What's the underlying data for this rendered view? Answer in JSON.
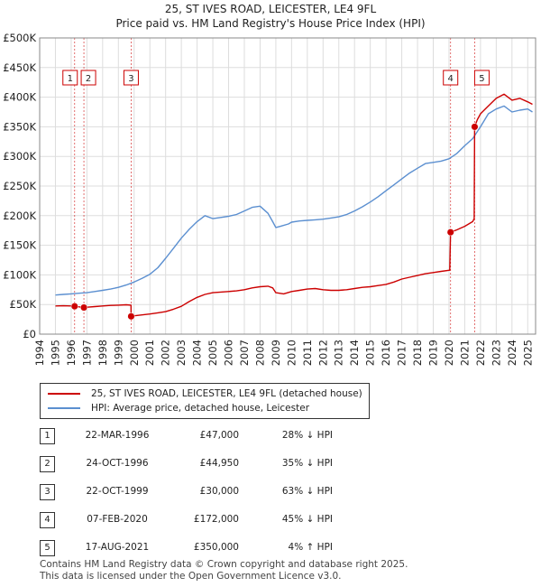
{
  "title_line1": "25, ST IVES ROAD, LEICESTER, LE4 9FL",
  "title_line2": "Price paid vs. HM Land Registry's House Price Index (HPI)",
  "legend": {
    "property": "25, ST IVES ROAD, LEICESTER, LE4 9FL (detached house)",
    "hpi": "HPI: Average price, detached house, Leicester"
  },
  "sales": [
    {
      "num": "1",
      "date": "22-MAR-1996",
      "price": "£47,000",
      "hpi": "28% ↓ HPI"
    },
    {
      "num": "2",
      "date": "24-OCT-1996",
      "price": "£44,950",
      "hpi": "35% ↓ HPI"
    },
    {
      "num": "3",
      "date": "22-OCT-1999",
      "price": "£30,000",
      "hpi": "63% ↓ HPI"
    },
    {
      "num": "4",
      "date": "07-FEB-2020",
      "price": "£172,000",
      "hpi": "45% ↓ HPI"
    },
    {
      "num": "5",
      "date": "17-AUG-2021",
      "price": "£350,000",
      "hpi": "4% ↑ HPI"
    }
  ],
  "footer": {
    "line1": "Contains HM Land Registry data © Crown copyright and database right 2025.",
    "line2": "This data is licensed under the Open Government Licence v3.0."
  },
  "colors": {
    "property": "#cc0000",
    "hpi": "#5b8fd0",
    "marker": "#cc0000",
    "vline": "#cc0000"
  },
  "chart_data": {
    "type": "line",
    "xlim": [
      1994,
      2025.5
    ],
    "ylim": [
      0,
      500000
    ],
    "x_ticks": [
      1994,
      1995,
      1996,
      1997,
      1998,
      1999,
      2000,
      2001,
      2002,
      2003,
      2004,
      2005,
      2006,
      2007,
      2008,
      2009,
      2010,
      2011,
      2012,
      2013,
      2014,
      2015,
      2016,
      2017,
      2018,
      2019,
      2020,
      2021,
      2022,
      2023,
      2024,
      2025
    ],
    "y_ticks": [
      0,
      50000,
      100000,
      150000,
      200000,
      250000,
      300000,
      350000,
      400000,
      450000,
      500000
    ],
    "y_tick_labels": [
      "£0",
      "£50K",
      "£100K",
      "£150K",
      "£200K",
      "£250K",
      "£300K",
      "£350K",
      "£400K",
      "£450K",
      "£500K"
    ],
    "grid": true,
    "sale_markers": [
      {
        "label": "1",
        "x": 1996.22,
        "y": 47000
      },
      {
        "label": "2",
        "x": 1996.81,
        "y": 44950
      },
      {
        "label": "3",
        "x": 1999.81,
        "y": 30000
      },
      {
        "label": "4",
        "x": 2020.1,
        "y": 172000
      },
      {
        "label": "5",
        "x": 2021.63,
        "y": 350000
      }
    ],
    "series": [
      {
        "name": "25, ST IVES ROAD, LEICESTER, LE4 9FL (detached house)",
        "x": [
          1995.0,
          1995.5,
          1996.0,
          1996.22,
          1996.5,
          1996.81,
          1997.0,
          1997.5,
          1998.0,
          1998.5,
          1999.0,
          1999.5,
          1999.8,
          1999.81,
          2000.0,
          2000.5,
          2001.0,
          2001.5,
          2002.0,
          2002.5,
          2003.0,
          2003.5,
          2004.0,
          2004.5,
          2005.0,
          2005.5,
          2006.0,
          2006.5,
          2007.0,
          2007.5,
          2008.0,
          2008.5,
          2008.8,
          2009.0,
          2009.5,
          2010.0,
          2010.5,
          2011.0,
          2011.5,
          2012.0,
          2012.5,
          2013.0,
          2013.5,
          2014.0,
          2014.5,
          2015.0,
          2015.5,
          2016.0,
          2016.5,
          2017.0,
          2017.5,
          2018.0,
          2018.5,
          2019.0,
          2019.5,
          2020.05,
          2020.1,
          2020.5,
          2021.0,
          2021.5,
          2021.6,
          2021.63,
          2021.8,
          2022.0,
          2022.5,
          2023.0,
          2023.5,
          2024.0,
          2024.5,
          2025.0,
          2025.3
        ],
        "values": [
          47500,
          47800,
          47600,
          47000,
          46000,
          44950,
          45500,
          46500,
          47500,
          48500,
          49000,
          49500,
          49000,
          30000,
          31000,
          32500,
          34000,
          36000,
          38000,
          42000,
          47000,
          55000,
          62000,
          67000,
          70000,
          71000,
          72000,
          73000,
          75000,
          78000,
          80000,
          81000,
          78000,
          70000,
          68000,
          72000,
          74000,
          76000,
          77000,
          75000,
          74000,
          74000,
          75000,
          77000,
          79000,
          80000,
          82000,
          84000,
          88000,
          93000,
          96000,
          99000,
          102000,
          104000,
          106000,
          108000,
          172000,
          176000,
          182000,
          190000,
          195000,
          350000,
          362000,
          372000,
          385000,
          398000,
          405000,
          395000,
          398000,
          392000,
          388000
        ]
      },
      {
        "name": "HPI: Average price, detached house, Leicester",
        "x": [
          1995.0,
          1995.5,
          1996.0,
          1996.5,
          1997.0,
          1997.5,
          1998.0,
          1998.5,
          1999.0,
          1999.5,
          2000.0,
          2000.5,
          2001.0,
          2001.5,
          2002.0,
          2002.5,
          2003.0,
          2003.5,
          2004.0,
          2004.5,
          2005.0,
          2005.5,
          2006.0,
          2006.5,
          2007.0,
          2007.5,
          2008.0,
          2008.5,
          2008.8,
          2009.0,
          2009.3,
          2009.8,
          2010.0,
          2010.5,
          2011.0,
          2011.5,
          2012.0,
          2012.5,
          2013.0,
          2013.5,
          2014.0,
          2014.5,
          2015.0,
          2015.5,
          2016.0,
          2016.5,
          2017.0,
          2017.5,
          2018.0,
          2018.5,
          2019.0,
          2019.5,
          2020.0,
          2020.5,
          2021.0,
          2021.5,
          2022.0,
          2022.5,
          2023.0,
          2023.5,
          2024.0,
          2024.5,
          2025.0,
          2025.3
        ],
        "values": [
          66000,
          67000,
          68000,
          69000,
          70000,
          72000,
          74000,
          76000,
          79000,
          83000,
          88000,
          94000,
          101000,
          112000,
          128000,
          145000,
          162000,
          177000,
          190000,
          200000,
          195000,
          197000,
          199000,
          202000,
          208000,
          214000,
          216000,
          204000,
          190000,
          180000,
          182000,
          186000,
          189000,
          191000,
          192000,
          193000,
          194000,
          196000,
          198000,
          202000,
          208000,
          215000,
          223000,
          232000,
          242000,
          252000,
          262000,
          272000,
          280000,
          288000,
          290000,
          292000,
          296000,
          305000,
          318000,
          330000,
          350000,
          372000,
          380000,
          385000,
          375000,
          378000,
          380000,
          375000
        ]
      }
    ]
  }
}
